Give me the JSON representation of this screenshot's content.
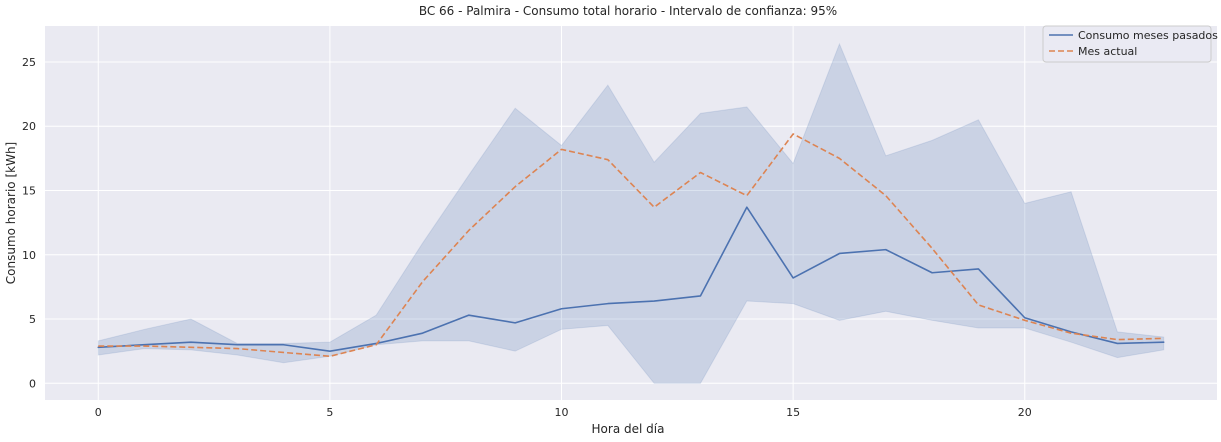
{
  "chart_data": {
    "type": "line",
    "title": "BC 66 - Palmira - Consumo total horario - Intervalo de confianza: 95%",
    "xlabel": "Hora del día",
    "ylabel": "Consumo horario [kWh]",
    "xlim": [
      -1.15,
      24.15
    ],
    "ylim": [
      -1.3,
      27.8
    ],
    "x_ticks": [
      0,
      5,
      10,
      15,
      20
    ],
    "y_ticks": [
      0,
      5,
      10,
      15,
      20,
      25
    ],
    "grid": true,
    "legend_position": "top-right",
    "background": "#eaeaf2",
    "x": [
      0,
      1,
      2,
      3,
      4,
      5,
      6,
      7,
      8,
      9,
      10,
      11,
      12,
      13,
      14,
      15,
      16,
      17,
      18,
      19,
      20,
      21,
      22,
      23
    ],
    "series": [
      {
        "name": "Consumo meses pasados",
        "color": "#4c72b0",
        "style": "solid",
        "values": [
          2.8,
          3.0,
          3.2,
          3.0,
          3.0,
          2.5,
          3.1,
          3.9,
          5.3,
          4.7,
          5.8,
          6.2,
          6.4,
          6.8,
          13.7,
          8.2,
          10.1,
          10.4,
          8.6,
          8.9,
          5.1,
          4.0,
          3.1,
          3.2
        ],
        "ci_lower": [
          2.2,
          2.7,
          2.6,
          2.2,
          1.6,
          2.1,
          3.0,
          3.3,
          3.3,
          2.5,
          4.2,
          4.5,
          0.0,
          0.0,
          6.4,
          6.2,
          4.9,
          5.6,
          4.9,
          4.3,
          4.3,
          3.2,
          2.0,
          2.6
        ],
        "ci_upper": [
          3.3,
          4.2,
          5.0,
          3.1,
          3.1,
          3.2,
          5.3,
          10.9,
          16.2,
          21.4,
          18.5,
          23.2,
          17.2,
          21.0,
          21.5,
          17.1,
          26.4,
          17.7,
          18.9,
          20.5,
          14.0,
          14.9,
          4.0,
          3.6
        ],
        "ci_color": "#4c72b0",
        "ci_opacity": 0.2
      },
      {
        "name": "Mes actual",
        "color": "#dd8452",
        "style": "dashed",
        "values": [
          2.9,
          2.9,
          2.8,
          2.7,
          2.4,
          2.1,
          3.0,
          7.9,
          11.9,
          15.3,
          18.2,
          17.4,
          13.7,
          16.4,
          14.6,
          19.4,
          17.5,
          14.6,
          10.5,
          6.1,
          4.9,
          3.9,
          3.4,
          3.5
        ]
      }
    ]
  }
}
